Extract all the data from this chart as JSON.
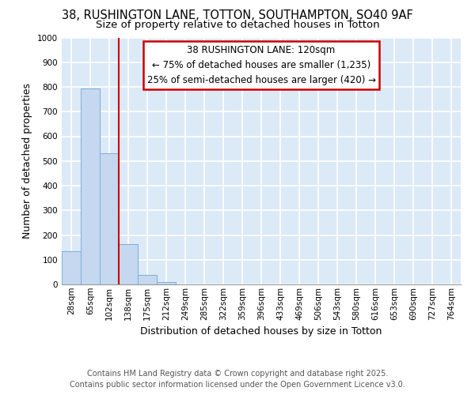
{
  "title_line1": "38, RUSHINGTON LANE, TOTTON, SOUTHAMPTON, SO40 9AF",
  "title_line2": "Size of property relative to detached houses in Totton",
  "xlabel": "Distribution of detached houses by size in Totton",
  "ylabel": "Number of detached properties",
  "categories": [
    "28sqm",
    "65sqm",
    "102sqm",
    "138sqm",
    "175sqm",
    "212sqm",
    "249sqm",
    "285sqm",
    "322sqm",
    "359sqm",
    "396sqm",
    "433sqm",
    "469sqm",
    "506sqm",
    "543sqm",
    "580sqm",
    "616sqm",
    "653sqm",
    "690sqm",
    "727sqm",
    "764sqm"
  ],
  "values": [
    135,
    795,
    530,
    163,
    38,
    10,
    0,
    0,
    0,
    0,
    0,
    0,
    0,
    0,
    0,
    0,
    0,
    0,
    0,
    0,
    0
  ],
  "bar_color": "#c5d8ef",
  "bar_edge_color": "#7aafd4",
  "red_line_x": 2.5,
  "annotation_text": "38 RUSHINGTON LANE: 120sqm\n← 75% of detached houses are smaller (1,235)\n25% of semi-detached houses are larger (420) →",
  "annotation_box_color": "#ffffff",
  "annotation_box_edge": "#cc0000",
  "ylim": [
    0,
    1000
  ],
  "yticks": [
    0,
    100,
    200,
    300,
    400,
    500,
    600,
    700,
    800,
    900,
    1000
  ],
  "plot_bg_color": "#dce9f7",
  "fig_bg_color": "#ffffff",
  "grid_color": "#ffffff",
  "footer_line1": "Contains HM Land Registry data © Crown copyright and database right 2025.",
  "footer_line2": "Contains public sector information licensed under the Open Government Licence v3.0.",
  "red_line_color": "#cc0000",
  "title_fontsize": 10.5,
  "subtitle_fontsize": 9.5,
  "axis_label_fontsize": 9,
  "tick_fontsize": 7.5,
  "annotation_fontsize": 8.5,
  "footer_fontsize": 7
}
